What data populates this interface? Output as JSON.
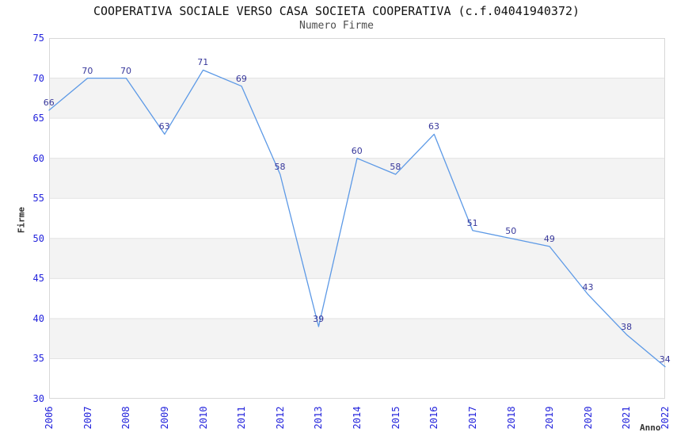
{
  "chart_data": {
    "type": "line",
    "title": "COOPERATIVA SOCIALE VERSO CASA SOCIETA COOPERATIVA (c.f.04041940372)",
    "subtitle": "Numero Firme",
    "xlabel": "Anno",
    "ylabel": "Firme",
    "categories": [
      "2006",
      "2007",
      "2008",
      "2009",
      "2010",
      "2011",
      "2012",
      "2013",
      "2014",
      "2015",
      "2016",
      "2017",
      "2018",
      "2019",
      "2020",
      "2021",
      "2022"
    ],
    "series": [
      {
        "name": "Numero Firme",
        "values": [
          66,
          70,
          70,
          63,
          71,
          69,
          58,
          39,
          60,
          58,
          63,
          51,
          50,
          49,
          43,
          38,
          34
        ]
      }
    ],
    "ylim": [
      30,
      75
    ],
    "ytick_step": 5,
    "grid": "horizontal-bands-alternating",
    "legend": "none",
    "point_labels": true,
    "colors": {
      "line": "#5c99e6",
      "tick_label": "#2323dc",
      "point_label": "#38389b",
      "band": "#f3f3f3",
      "gridline": "#e3e3e3",
      "plot_border": "#d8d8d8",
      "title": "#111111",
      "subtitle": "#4d4d4d",
      "axis_title": "#333333",
      "background": "#ffffff"
    }
  }
}
